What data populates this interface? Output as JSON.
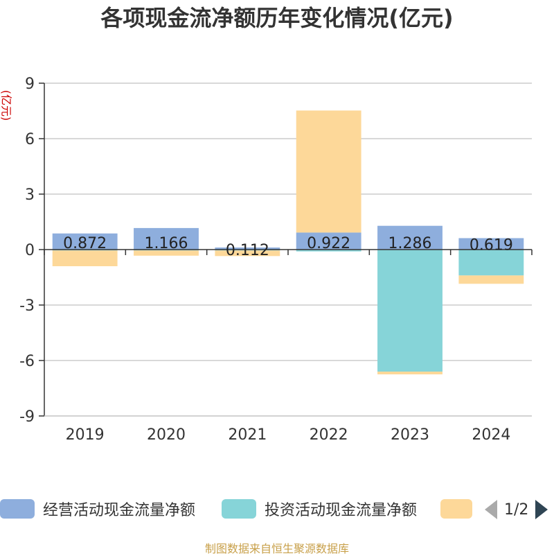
{
  "title": "各项现金流净额历年变化情况(亿元)",
  "yunit": "(亿元)",
  "source": "制图数据来自恒生聚源数据库",
  "pager": "1/2",
  "colors": {
    "operating": "#8eaedd",
    "investing": "#86d4d8",
    "financing": "#fdd899",
    "grid": "#cccccc",
    "axis": "#333333",
    "text": "#333333"
  },
  "chart_data": {
    "type": "bar",
    "stacked": true,
    "categories": [
      "2019",
      "2020",
      "2021",
      "2022",
      "2023",
      "2024"
    ],
    "ylim": [
      -9,
      9
    ],
    "yticks": [
      9,
      6,
      3,
      0,
      -3,
      -6,
      -9
    ],
    "series": [
      {
        "name": "经营活动现金流量净额",
        "color": "#8eaedd",
        "values": [
          0.872,
          1.166,
          0.112,
          0.922,
          1.286,
          0.619
        ],
        "labels": [
          "0.872",
          "1.166",
          "0.112",
          "0.922",
          "1.286",
          "0.619"
        ]
      },
      {
        "name": "投资活动现金流量净额",
        "color": "#86d4d8",
        "values": [
          -0.05,
          -0.05,
          -0.05,
          -0.1,
          -6.6,
          -1.4
        ]
      },
      {
        "name": "",
        "color": "#fdd899",
        "values": [
          -0.85,
          -0.28,
          -0.3,
          6.6,
          -0.15,
          -0.45
        ]
      }
    ],
    "legend_position": "bottom"
  }
}
